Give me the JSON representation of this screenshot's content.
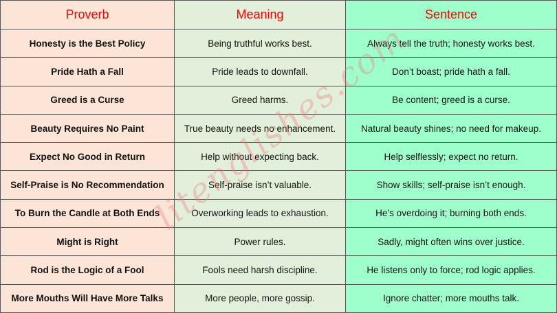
{
  "headers": {
    "proverb": "Proverb",
    "meaning": "Meaning",
    "sentence": "Sentence"
  },
  "colors": {
    "header_text": "#ff0000",
    "proverb_bg": "#fce4d6",
    "meaning_bg": "#e2efda",
    "sentence_bg": "#9fffcc"
  },
  "rows": [
    {
      "proverb": "Honesty is the Best Policy",
      "meaning": "Being truthful works best.",
      "sentence": "Always tell the truth; honesty works best."
    },
    {
      "proverb": "Pride Hath a Fall",
      "meaning": "Pride leads to downfall.",
      "sentence": "Don’t boast; pride hath a fall."
    },
    {
      "proverb": "Greed is a Curse",
      "meaning": "Greed harms.",
      "sentence": "Be content; greed is a curse."
    },
    {
      "proverb": "Beauty Requires No Paint",
      "meaning": "True beauty needs no enhancement.",
      "sentence": "Natural beauty shines; no need for makeup."
    },
    {
      "proverb": "Expect No Good in Return",
      "meaning": "Help without expecting back.",
      "sentence": "Help selflessly; expect no return."
    },
    {
      "proverb": "Self-Praise is No Recommendation",
      "meaning": "Self-praise isn’t valuable.",
      "sentence": "Show skills; self-praise isn’t enough."
    },
    {
      "proverb": "To Burn the Candle at Both Ends",
      "meaning": "Overworking leads to exhaustion.",
      "sentence": "He’s overdoing it; burning both ends."
    },
    {
      "proverb": "Might is Right",
      "meaning": "Power rules.",
      "sentence": "Sadly, might often wins over justice."
    },
    {
      "proverb": "Rod is the Logic of a Fool",
      "meaning": "Fools need harsh discipline.",
      "sentence": "He listens only to force; rod logic applies."
    },
    {
      "proverb": "More Mouths Will Have More Talks",
      "meaning": "More people, more gossip.",
      "sentence": "Ignore chatter; more mouths talk."
    }
  ],
  "watermark": "litenglishes.com"
}
